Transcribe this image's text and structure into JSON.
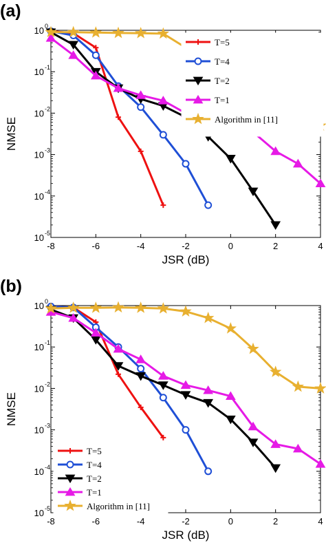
{
  "chart_data": [
    {
      "type": "line",
      "panel": "(a)",
      "xlabel": "JSR (dB)",
      "ylabel": "NMSE",
      "xlim": [
        -8,
        4
      ],
      "ylim": [
        1e-05,
        1
      ],
      "yscale": "log",
      "xticks": [
        "-8",
        "-6",
        "-4",
        "-2",
        "0",
        "2",
        "4"
      ],
      "yticks": [
        {
          "base": "10",
          "exp": "0"
        },
        {
          "base": "10",
          "exp": "-1"
        },
        {
          "base": "10",
          "exp": "-2"
        },
        {
          "base": "10",
          "exp": "-3"
        },
        {
          "base": "10",
          "exp": "-4"
        },
        {
          "base": "10",
          "exp": "-5"
        }
      ],
      "legend_position": "top-right",
      "grid": false,
      "series": [
        {
          "name": "T=5",
          "color": "#ee1111",
          "marker": "plus",
          "x": [
            -8,
            -7,
            -6,
            -5,
            -4,
            -3
          ],
          "y": [
            0.95,
            0.85,
            0.38,
            0.008,
            0.0012,
            6e-05
          ]
        },
        {
          "name": "T=4",
          "color": "#1f4fd6",
          "marker": "circle",
          "x": [
            -8,
            -7,
            -6,
            -5,
            -4,
            -3,
            -2,
            -1
          ],
          "y": [
            0.95,
            0.75,
            0.25,
            0.045,
            0.014,
            0.003,
            0.0006,
            6e-05
          ]
        },
        {
          "name": "T=2",
          "color": "#000000",
          "marker": "triangle-down",
          "x": [
            -8,
            -7,
            -6,
            -5,
            -4,
            -3,
            -2,
            -1,
            0,
            1,
            2
          ],
          "y": [
            0.9,
            0.45,
            0.1,
            0.04,
            0.022,
            0.015,
            0.008,
            0.0027,
            0.0008,
            0.00013,
            2e-05
          ]
        },
        {
          "name": "T=1",
          "color": "#e61ae6",
          "marker": "triangle-up",
          "x": [
            -8,
            -7,
            -6,
            -5,
            -4,
            -3,
            -2,
            -1,
            0,
            1,
            2,
            3,
            4
          ],
          "y": [
            0.65,
            0.25,
            0.08,
            0.04,
            0.027,
            0.02,
            0.01,
            0.0065,
            0.0055,
            0.0035,
            0.0012,
            0.0006,
            0.0002
          ]
        },
        {
          "name": "Algorithm in [11]",
          "color": "#e8b030",
          "marker": "star",
          "x": [
            -8,
            -7,
            -6,
            -5,
            -4,
            -3,
            2,
            3,
            4
          ],
          "y": [
            0.9,
            0.9,
            0.88,
            0.86,
            0.85,
            0.83,
            0.017,
            0.01,
            0.005
          ]
        }
      ]
    },
    {
      "type": "line",
      "panel": "(b)",
      "xlabel": "JSR (dB)",
      "ylabel": "NMSE",
      "xlim": [
        -8,
        4
      ],
      "ylim": [
        1e-05,
        1
      ],
      "yscale": "log",
      "xticks": [
        "-8",
        "-6",
        "-4",
        "-2",
        "0",
        "2",
        "4"
      ],
      "yticks": [
        {
          "base": "10",
          "exp": "0"
        },
        {
          "base": "10",
          "exp": "-1"
        },
        {
          "base": "10",
          "exp": "-2"
        },
        {
          "base": "10",
          "exp": "-3"
        },
        {
          "base": "10",
          "exp": "-4"
        },
        {
          "base": "10",
          "exp": "-5"
        }
      ],
      "legend_position": "bottom-left",
      "grid": false,
      "series": [
        {
          "name": "T=5",
          "color": "#ee1111",
          "marker": "plus",
          "x": [
            -8,
            -7,
            -6,
            -5,
            -4,
            -3
          ],
          "y": [
            0.95,
            0.9,
            0.4,
            0.022,
            0.0035,
            0.00065
          ]
        },
        {
          "name": "T=4",
          "color": "#1f4fd6",
          "marker": "circle",
          "x": [
            -8,
            -7,
            -6,
            -5,
            -4,
            -3,
            -2,
            -1
          ],
          "y": [
            0.95,
            0.9,
            0.3,
            0.1,
            0.03,
            0.006,
            0.001,
            0.0001
          ]
        },
        {
          "name": "T=2",
          "color": "#000000",
          "marker": "triangle-down",
          "x": [
            -8,
            -7,
            -6,
            -5,
            -4,
            -3,
            -2,
            -1,
            0,
            1,
            2
          ],
          "y": [
            0.8,
            0.5,
            0.15,
            0.035,
            0.02,
            0.012,
            0.007,
            0.0045,
            0.0018,
            0.0005,
            0.00012
          ]
        },
        {
          "name": "T=1",
          "color": "#e61ae6",
          "marker": "triangle-up",
          "x": [
            -8,
            -7,
            -6,
            -5,
            -4,
            -3,
            -2,
            -1,
            0,
            1,
            2,
            3,
            4
          ],
          "y": [
            0.7,
            0.5,
            0.22,
            0.09,
            0.05,
            0.02,
            0.012,
            0.009,
            0.0065,
            0.0012,
            0.00045,
            0.00035,
            0.00015
          ]
        },
        {
          "name": "Algorithm in [11]",
          "color": "#e8b030",
          "marker": "star",
          "x": [
            -8,
            -7,
            -6,
            -5,
            -4,
            -3,
            -2,
            -1,
            0,
            1,
            2,
            3,
            4
          ],
          "y": [
            0.85,
            0.88,
            0.88,
            0.9,
            0.88,
            0.85,
            0.72,
            0.5,
            0.28,
            0.09,
            0.025,
            0.011,
            0.01
          ]
        }
      ]
    }
  ]
}
